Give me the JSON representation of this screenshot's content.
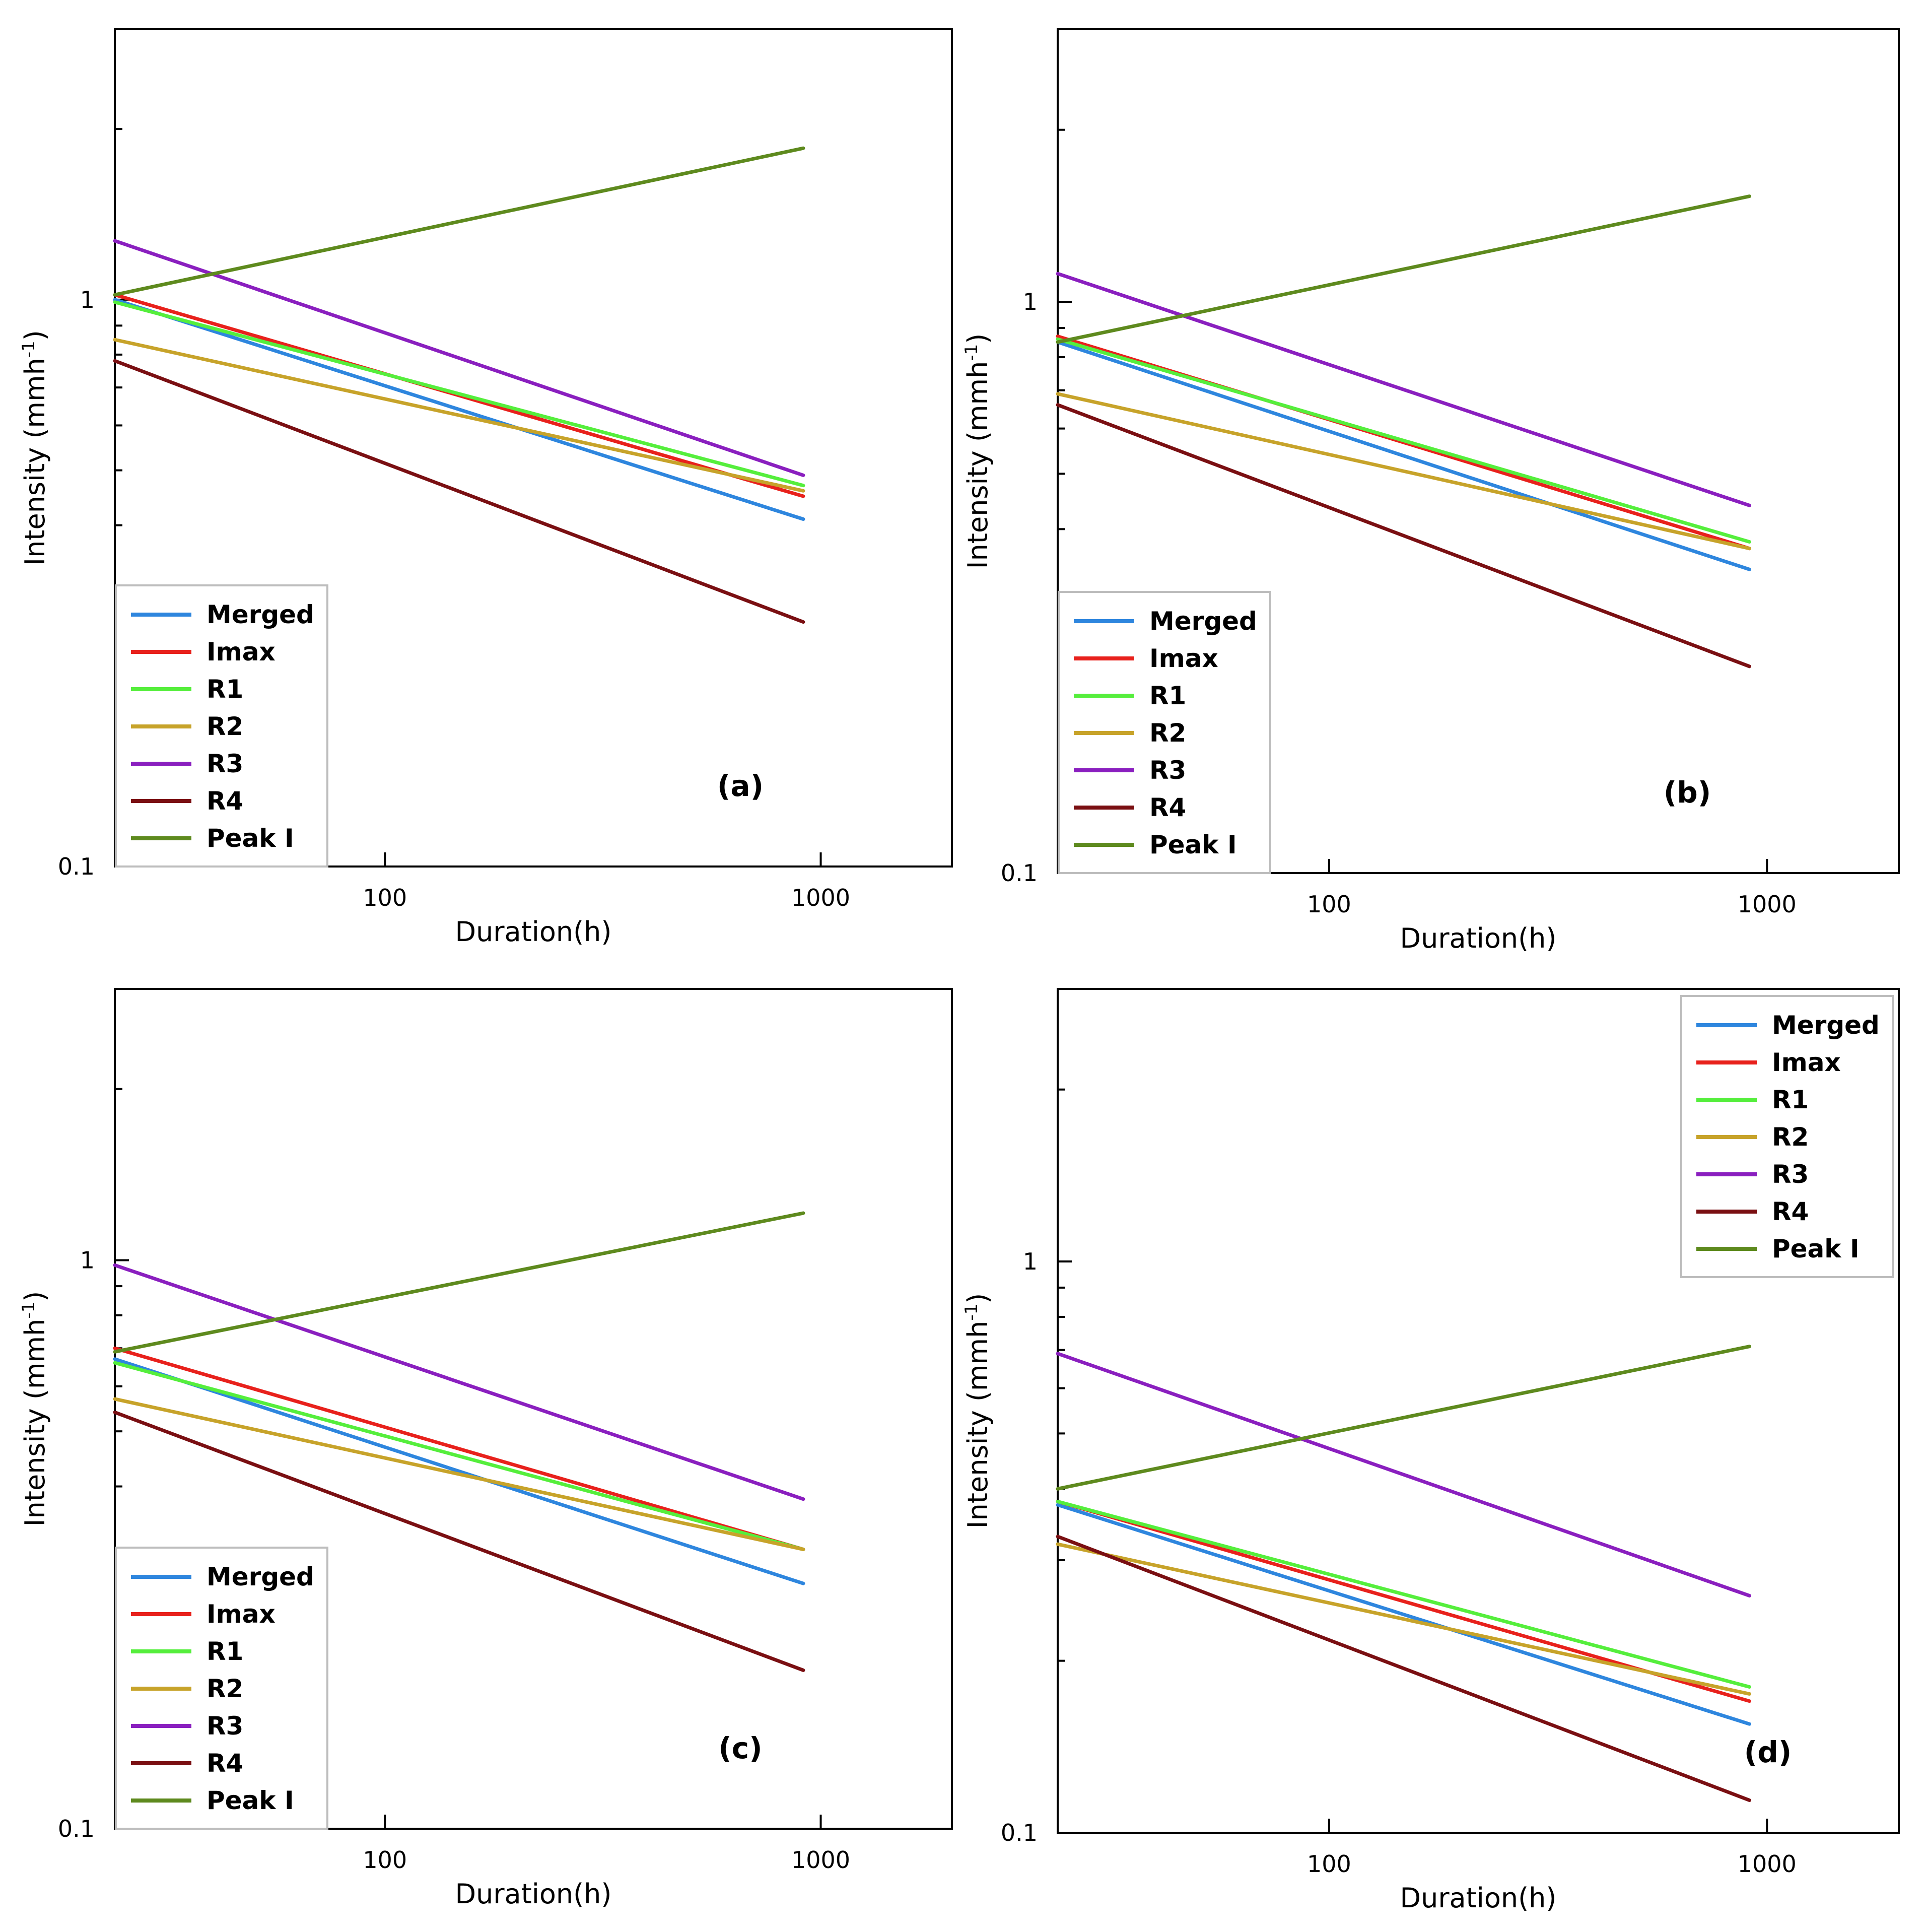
{
  "chart_data": [
    {
      "type": "line",
      "title": "",
      "panel_label": "(a)",
      "xlabel": "Duration(h)",
      "ylabel": "Intensity (mmh-1)",
      "ylabel_main": "Intensity (mmh",
      "ylabel_sup": "-1",
      "ylabel_close": ")",
      "xscale": "log",
      "yscale": "log",
      "xlim": [
        24,
        2000
      ],
      "ylim": [
        0.1,
        3
      ],
      "xticks": [
        100,
        1000
      ],
      "xtick_labels": [
        "100",
        "1000"
      ],
      "yticks": [
        0.1,
        1
      ],
      "ytick_labels": [
        "0.1",
        "1"
      ],
      "y_minor_ticks": [
        0.2,
        0.3,
        0.4,
        0.5,
        0.6,
        0.7,
        0.8,
        0.9,
        2
      ],
      "legend_position": "lower-left",
      "x": [
        24,
        912
      ],
      "series": [
        {
          "name": "Merged",
          "color": "#2e86de",
          "values": [
            1.0,
            0.41
          ]
        },
        {
          "name": "Imax",
          "color": "#e8211c",
          "values": [
            1.02,
            0.45
          ]
        },
        {
          "name": "R1",
          "color": "#55ee3c",
          "values": [
            0.99,
            0.47
          ]
        },
        {
          "name": "R2",
          "color": "#c7a32a",
          "values": [
            0.85,
            0.46
          ]
        },
        {
          "name": "R3",
          "color": "#8a1fbf",
          "values": [
            1.27,
            0.49
          ]
        },
        {
          "name": "R4",
          "color": "#7a0f12",
          "values": [
            0.78,
            0.27
          ]
        },
        {
          "name": "Peak I",
          "color": "#5e8a1e",
          "values": [
            1.02,
            1.85
          ]
        }
      ]
    },
    {
      "type": "line",
      "title": "",
      "panel_label": "(b)",
      "xlabel": "Duration(h)",
      "ylabel": "Intensity (mmh-1)",
      "ylabel_main": "Intensity (mmh",
      "ylabel_sup": "-1",
      "ylabel_close": ")",
      "xscale": "log",
      "yscale": "log",
      "xlim": [
        24,
        2000
      ],
      "ylim": [
        0.1,
        3
      ],
      "xticks": [
        100,
        1000
      ],
      "xtick_labels": [
        "100",
        "1000"
      ],
      "yticks": [
        0.1,
        1
      ],
      "ytick_labels": [
        "0.1",
        "1"
      ],
      "y_minor_ticks": [
        0.2,
        0.3,
        0.4,
        0.5,
        0.6,
        0.7,
        0.8,
        0.9,
        2
      ],
      "legend_position": "lower-left",
      "x": [
        24,
        912
      ],
      "series": [
        {
          "name": "Merged",
          "color": "#2e86de",
          "values": [
            0.85,
            0.34
          ]
        },
        {
          "name": "Imax",
          "color": "#e8211c",
          "values": [
            0.87,
            0.37
          ]
        },
        {
          "name": "R1",
          "color": "#55ee3c",
          "values": [
            0.86,
            0.38
          ]
        },
        {
          "name": "R2",
          "color": "#c7a32a",
          "values": [
            0.69,
            0.37
          ]
        },
        {
          "name": "R3",
          "color": "#8a1fbf",
          "values": [
            1.12,
            0.44
          ]
        },
        {
          "name": "R4",
          "color": "#7a0f12",
          "values": [
            0.66,
            0.23
          ]
        },
        {
          "name": "Peak I",
          "color": "#5e8a1e",
          "values": [
            0.85,
            1.53
          ]
        }
      ]
    },
    {
      "type": "line",
      "title": "",
      "panel_label": "(c)",
      "xlabel": "Duration(h)",
      "ylabel": "Intensity (mmh-1)",
      "ylabel_main": "Intensity (mmh",
      "ylabel_sup": "-1",
      "ylabel_close": ")",
      "xscale": "log",
      "yscale": "log",
      "xlim": [
        24,
        2000
      ],
      "ylim": [
        0.1,
        3
      ],
      "xticks": [
        100,
        1000
      ],
      "xtick_labels": [
        "100",
        "1000"
      ],
      "yticks": [
        0.1,
        1
      ],
      "ytick_labels": [
        "0.1",
        "1"
      ],
      "y_minor_ticks": [
        0.2,
        0.3,
        0.4,
        0.5,
        0.6,
        0.7,
        0.8,
        0.9,
        2
      ],
      "legend_position": "lower-left",
      "x": [
        24,
        912
      ],
      "series": [
        {
          "name": "Merged",
          "color": "#2e86de",
          "values": [
            0.67,
            0.27
          ]
        },
        {
          "name": "Imax",
          "color": "#e8211c",
          "values": [
            0.7,
            0.31
          ]
        },
        {
          "name": "R1",
          "color": "#55ee3c",
          "values": [
            0.66,
            0.31
          ]
        },
        {
          "name": "R2",
          "color": "#c7a32a",
          "values": [
            0.57,
            0.31
          ]
        },
        {
          "name": "R3",
          "color": "#8a1fbf",
          "values": [
            0.98,
            0.38
          ]
        },
        {
          "name": "R4",
          "color": "#7a0f12",
          "values": [
            0.54,
            0.19
          ]
        },
        {
          "name": "Peak I",
          "color": "#5e8a1e",
          "values": [
            0.69,
            1.21
          ]
        }
      ]
    },
    {
      "type": "line",
      "title": "",
      "panel_label": "(d)",
      "xlabel": "Duration(h)",
      "ylabel": "Intensity (mmh-1)",
      "ylabel_main": "Intensity (mmh",
      "ylabel_sup": "-1",
      "ylabel_close": ")",
      "xscale": "log",
      "yscale": "log",
      "xlim": [
        24,
        2000
      ],
      "ylim": [
        0.1,
        3
      ],
      "xticks": [
        100,
        1000
      ],
      "xtick_labels": [
        "100",
        "1000"
      ],
      "yticks": [
        0.1,
        1
      ],
      "ytick_labels": [
        "0.1",
        "1"
      ],
      "y_minor_ticks": [
        0.2,
        0.3,
        0.4,
        0.5,
        0.6,
        0.7,
        0.8,
        0.9,
        2
      ],
      "legend_position": "top-right",
      "x": [
        24,
        912
      ],
      "series": [
        {
          "name": "Merged",
          "color": "#2e86de",
          "values": [
            0.375,
            0.155
          ]
        },
        {
          "name": "Imax",
          "color": "#e8211c",
          "values": [
            0.38,
            0.17
          ]
        },
        {
          "name": "R1",
          "color": "#55ee3c",
          "values": [
            0.38,
            0.18
          ]
        },
        {
          "name": "R2",
          "color": "#c7a32a",
          "values": [
            0.32,
            0.175
          ]
        },
        {
          "name": "R3",
          "color": "#8a1fbf",
          "values": [
            0.69,
            0.26
          ]
        },
        {
          "name": "R4",
          "color": "#7a0f12",
          "values": [
            0.33,
            0.114
          ]
        },
        {
          "name": "Peak I",
          "color": "#5e8a1e",
          "values": [
            0.4,
            0.71
          ]
        }
      ]
    }
  ]
}
